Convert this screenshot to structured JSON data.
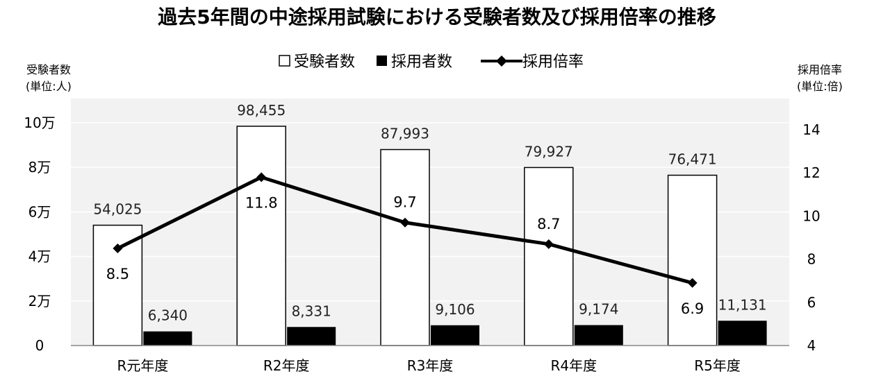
{
  "chart_data": {
    "type": "bar",
    "title": "過去5年間の中途採用試験における受験者数及び採用倍率の推移",
    "categories": [
      "R元年度",
      "R2年度",
      "R3年度",
      "R4年度",
      "R5年度"
    ],
    "series": [
      {
        "name": "受験者数",
        "kind": "bar",
        "axis": "left",
        "color": "#ffffff",
        "values": [
          54025,
          98455,
          87993,
          79927,
          76471
        ],
        "labels": [
          "54,025",
          "98,455",
          "87,993",
          "79,927",
          "76,471"
        ]
      },
      {
        "name": "採用者数",
        "kind": "bar",
        "axis": "left",
        "color": "#000000",
        "values": [
          6340,
          8331,
          9106,
          9174,
          11131
        ],
        "labels": [
          "6,340",
          "8,331",
          "9,106",
          "9,174",
          "11,131"
        ]
      },
      {
        "name": "採用倍率",
        "kind": "line",
        "axis": "right",
        "color": "#000000",
        "values": [
          8.5,
          11.8,
          9.7,
          8.7,
          6.9
        ],
        "labels": [
          "8.5",
          "11.8",
          "9.7",
          "8.7",
          "6.9"
        ]
      }
    ],
    "y_left": {
      "label_line1": "受験者数",
      "label_line2": "(単位:人)",
      "ylim": [
        0,
        100000
      ],
      "ticks": [
        {
          "value": 0,
          "label": "0"
        },
        {
          "value": 20000,
          "label": "2万"
        },
        {
          "value": 40000,
          "label": "4万"
        },
        {
          "value": 60000,
          "label": "6万"
        },
        {
          "value": 80000,
          "label": "8万"
        },
        {
          "value": 100000,
          "label": "10万"
        }
      ]
    },
    "y_right": {
      "label_line1": "採用倍率",
      "label_line2": "(単位:倍)",
      "ylim": [
        4,
        14
      ],
      "ticks": [
        {
          "value": 4,
          "label": "4"
        },
        {
          "value": 6,
          "label": "6"
        },
        {
          "value": 8,
          "label": "8"
        },
        {
          "value": 10,
          "label": "10"
        },
        {
          "value": 12,
          "label": "12"
        },
        {
          "value": 14,
          "label": "14"
        }
      ]
    },
    "grid": true,
    "legend_position": "top-center"
  }
}
